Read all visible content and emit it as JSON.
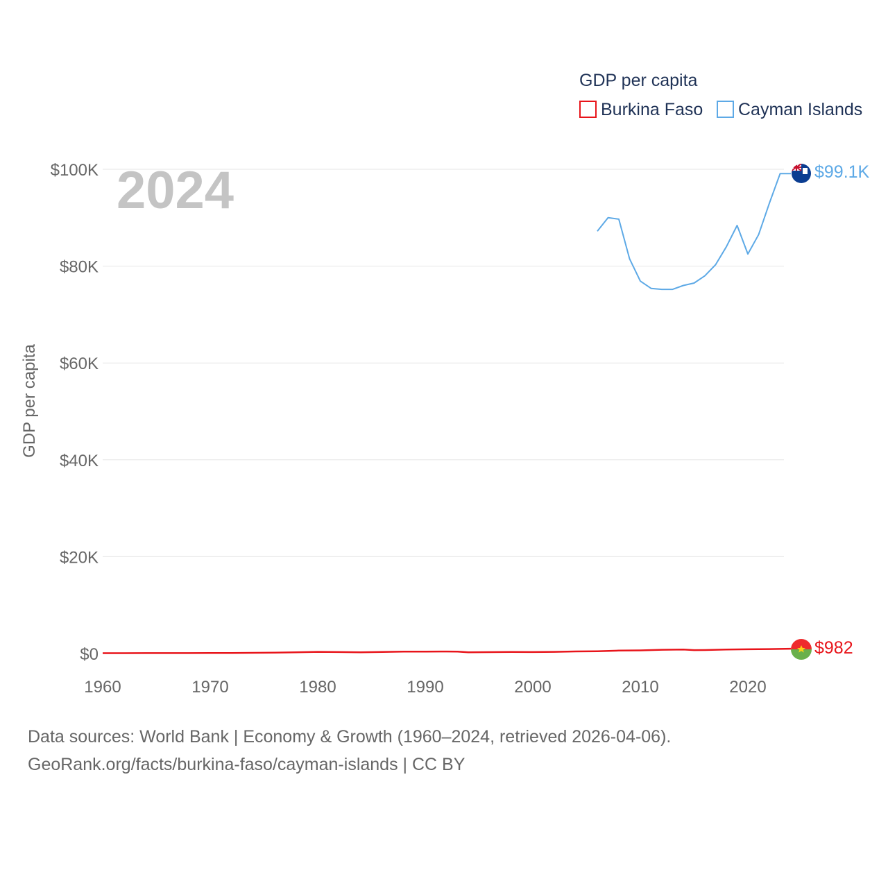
{
  "chart_data": {
    "type": "line",
    "legend": {
      "title": "GDP per capita",
      "position": "top-right"
    },
    "year_label": "2024",
    "ylabel": "GDP per capita",
    "xlabel": "",
    "xlim": [
      1960,
      2024
    ],
    "ylim": [
      0,
      100000
    ],
    "x_ticks": [
      1960,
      1970,
      1980,
      1990,
      2000,
      2010,
      2020
    ],
    "x_tick_labels": [
      "1960",
      "1970",
      "1980",
      "1990",
      "2000",
      "2010",
      "2020"
    ],
    "y_ticks": [
      0,
      20000,
      40000,
      60000,
      80000,
      100000
    ],
    "y_tick_labels": [
      "$0",
      "$20K",
      "$40K",
      "$60K",
      "$80K",
      "$100K"
    ],
    "grid": true,
    "series": [
      {
        "name": "Burkina Faso",
        "color": "#e8141a",
        "end_label": "$982",
        "flag": "burkina-faso-flag-icon",
        "x": [
          1960,
          1962,
          1964,
          1966,
          1968,
          1970,
          1972,
          1974,
          1976,
          1978,
          1980,
          1982,
          1984,
          1986,
          1988,
          1990,
          1992,
          1993,
          1994,
          1996,
          1998,
          2000,
          2002,
          2004,
          2006,
          2008,
          2010,
          2012,
          2014,
          2015,
          2016,
          2018,
          2020,
          2022,
          2023,
          2024
        ],
        "values": [
          70,
          75,
          80,
          85,
          90,
          95,
          110,
          140,
          180,
          250,
          350,
          300,
          240,
          330,
          390,
          400,
          420,
          390,
          240,
          280,
          320,
          300,
          340,
          430,
          470,
          600,
          650,
          780,
          820,
          700,
          720,
          820,
          880,
          920,
          950,
          982
        ]
      },
      {
        "name": "Cayman Islands",
        "color": "#5da9e6",
        "end_label": "$99.1K",
        "flag": "cayman-islands-flag-icon",
        "x": [
          2006,
          2007,
          2008,
          2009,
          2010,
          2011,
          2012,
          2013,
          2014,
          2015,
          2016,
          2017,
          2018,
          2019,
          2020,
          2021,
          2022,
          2023,
          2024
        ],
        "values": [
          87200,
          90000,
          89700,
          81500,
          76900,
          75400,
          75200,
          75200,
          76000,
          76500,
          78000,
          80300,
          84000,
          88400,
          82500,
          86500,
          93000,
          99100,
          99100
        ]
      }
    ]
  },
  "footer": {
    "line1": "Data sources: World Bank | Economy & Growth (1960–2024, retrieved 2026-04-06).",
    "line2": "GeoRank.org/facts/burkina-faso/cayman-islands | CC BY"
  }
}
